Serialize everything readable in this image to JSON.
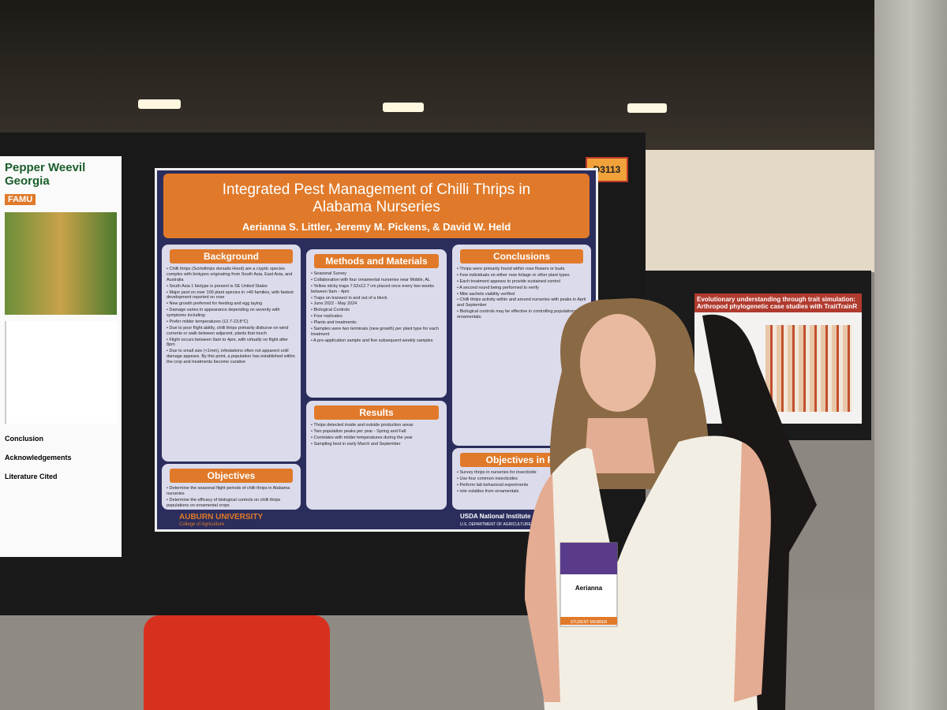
{
  "booth": "D3113",
  "poster": {
    "title": "Integrated Pest Management of Chilli Thrips in Alabama Nurseries",
    "authors": "Aerianna S. Littler, Jeremy M. Pickens, & David W. Held",
    "sections": [
      {
        "heading": "Background",
        "items": [
          "Chilli thrips (Scirtothrips dorsalis Hood) are a cryptic species complex with biotypes originating from South Asia, East Asia, and Australia",
          "South Asia 1 biotype is present is SE United States",
          "Major pest on over 100 plant species in >40 families, with fastest development reported on rose",
          "New growth preferred for feeding and egg laying",
          "Damage varies in appearance depending on severity with symptoms including:",
          "Prefer milder temperatures (12.7-23.8°C)",
          "Due to poor flight ability, chilli thrips primarily disburse on wind currents or walk between adjacent, plants that touch",
          "Flight occurs between 9am to 4pm, with virtually no flight after 8pm",
          "Due to small size (<1mm), infestations often not apparent until damage appears. By this point, a population has established within the crop and treatments become curative"
        ]
      },
      {
        "heading": "Objectives",
        "items": [
          "Determine the seasonal flight periods of chilli thrips in Alabama nurseries",
          "Determine the efficacy of biological controls on chilli thrips populations on ornamental crops"
        ]
      },
      {
        "heading": "Methods and Materials",
        "items": [
          "Seasonal Survey",
          "Collaboration with four ornamental nurseries near Mobile, AL",
          "Yellow sticky traps 7.62x12.7 cm placed once every two weeks between 9am - 4pm",
          "Traps on transect in and out of a block",
          "June 2022 - May 2024",
          "Biological Controls",
          "Four replicates",
          "Plants and treatments:",
          "Samples were two terminals (new growth) per plant type for each treatment",
          "A pre-application sample and five subsequent weekly samples"
        ]
      },
      {
        "heading": "Results",
        "items": [
          "Thrips detected inside and outside production areas",
          "Two population peaks per year - Spring and Fall",
          "Correlates with milder temperatures during the year",
          "Sampling best in early March and September"
        ]
      },
      {
        "heading": "Conclusions",
        "items": [
          "Thrips were primarily found within rose flowers or buds",
          "Few individuals on either rose foliage or other plant types",
          "Each treatment appears to provide sustained control",
          "A second round being performed to verify",
          "Mite sachets viability verified",
          "Chilli thrips activity within and around nurseries with peaks in April and September",
          "Biological controls may be effective in controlling populations in ornamentals."
        ]
      },
      {
        "heading": "Objectives in Pr",
        "items": [
          "Survey thrips in nurseries for insecticide",
          "Use four common insecticides",
          "Perform lab behavioral experiments",
          "role volatiles from ornamentals"
        ]
      }
    ],
    "footer_left": "AUBURN UNIVERSITY",
    "footer_left_sub": "College of Agriculture",
    "footer_right": "USDA National Institute of Fo",
    "footer_right_sub": "U.S. DEPARTMENT OF AGRICULTURE"
  },
  "left_poster": {
    "title": "Pepper Weevil",
    "title2": "Georgia",
    "logo": "FAMU",
    "headings": [
      "Conclusion",
      "Acknowledgements",
      "Literature Cited"
    ]
  },
  "right_poster": {
    "title": "Evolutionary understanding through trait simulation: Arthropod phylogenetic case studies with TraitTrainR"
  },
  "badge": {
    "name": "Aerianna",
    "ribbon": "STUDENT MEMBER"
  }
}
